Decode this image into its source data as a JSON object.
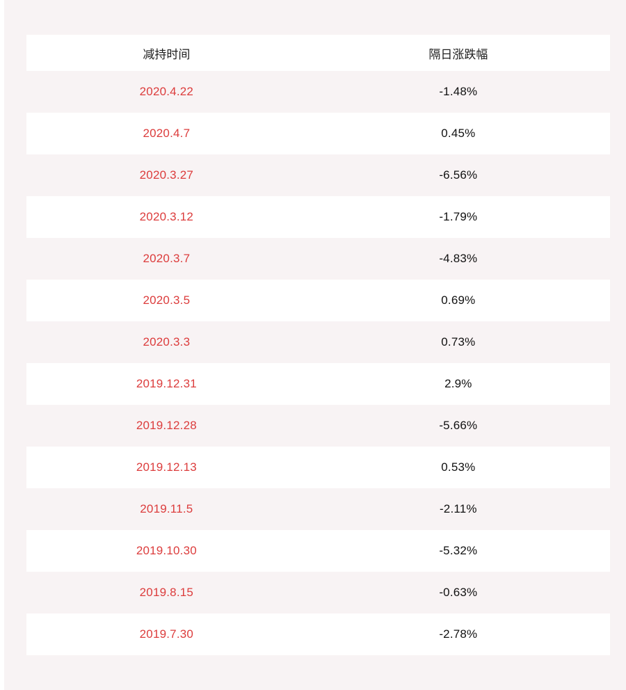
{
  "colors": {
    "page_background": "#f8f3f4",
    "row_white": "#ffffff",
    "date_red": "#dc3c3c",
    "value_black": "#111111"
  },
  "table": {
    "columns": [
      {
        "label": "减持时间"
      },
      {
        "label": "隔日涨跌幅"
      }
    ],
    "rows": [
      {
        "date": "2020.4.22",
        "change": "-1.48%"
      },
      {
        "date": "2020.4.7",
        "change": "0.45%"
      },
      {
        "date": "2020.3.27",
        "change": "-6.56%"
      },
      {
        "date": "2020.3.12",
        "change": "-1.79%"
      },
      {
        "date": "2020.3.7",
        "change": "-4.83%"
      },
      {
        "date": "2020.3.5",
        "change": "0.69%"
      },
      {
        "date": "2020.3.3",
        "change": "0.73%"
      },
      {
        "date": "2019.12.31",
        "change": "2.9%"
      },
      {
        "date": "2019.12.28",
        "change": "-5.66%"
      },
      {
        "date": "2019.12.13",
        "change": "0.53%"
      },
      {
        "date": "2019.11.5",
        "change": "-2.11%"
      },
      {
        "date": "2019.10.30",
        "change": "-5.32%"
      },
      {
        "date": "2019.8.15",
        "change": "-0.63%"
      },
      {
        "date": "2019.7.30",
        "change": "-2.78%"
      }
    ]
  },
  "chart_data": {
    "type": "table",
    "title": "",
    "columns": [
      "减持时间",
      "隔日涨跌幅"
    ],
    "categories": [
      "2020.4.22",
      "2020.4.7",
      "2020.3.27",
      "2020.3.12",
      "2020.3.7",
      "2020.3.5",
      "2020.3.3",
      "2019.12.31",
      "2019.12.28",
      "2019.12.13",
      "2019.11.5",
      "2019.10.30",
      "2019.8.15",
      "2019.7.30"
    ],
    "values_percent": [
      -1.48,
      0.45,
      -6.56,
      -1.79,
      -4.83,
      0.69,
      0.73,
      2.9,
      -5.66,
      0.53,
      -2.11,
      -5.32,
      -0.63,
      -2.78
    ]
  }
}
